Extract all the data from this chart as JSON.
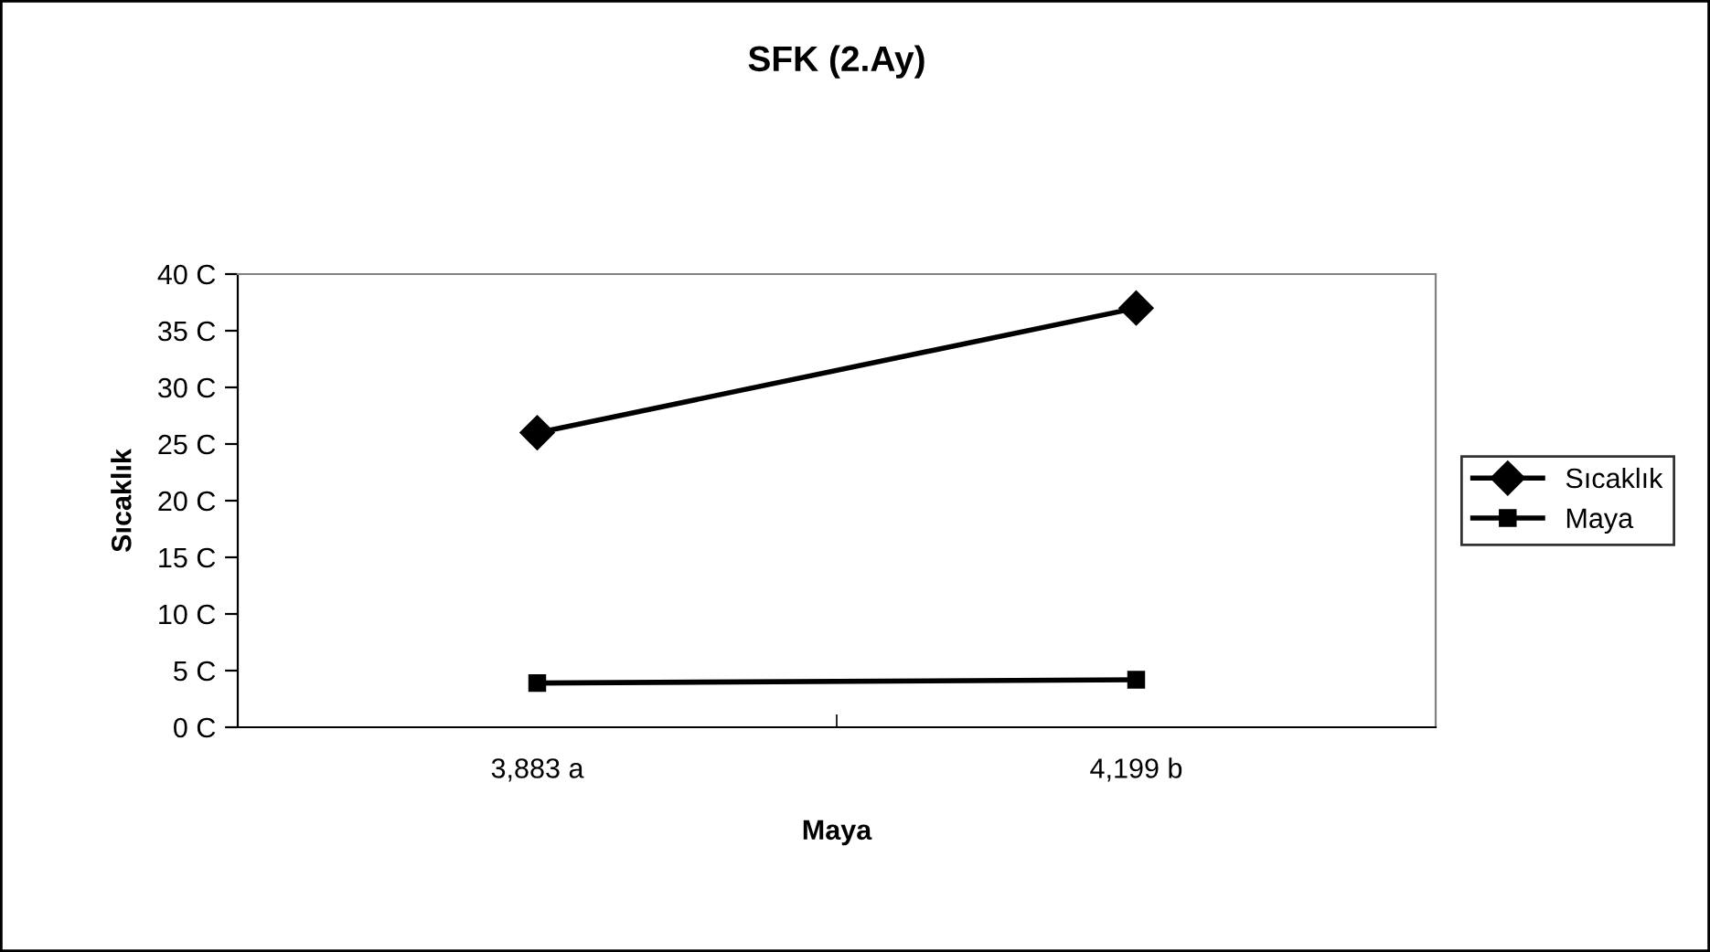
{
  "chart_data": {
    "type": "line",
    "title": "SFK (2.Ay)",
    "xlabel": "Maya",
    "ylabel": "Sıcaklık",
    "categories": [
      "3,883 a",
      "4,199 b"
    ],
    "series": [
      {
        "name": "Sıcaklık",
        "color": "#000000",
        "values": [
          26,
          37
        ],
        "marker": "diamond"
      },
      {
        "name": "Maya",
        "color": "#000000",
        "values": [
          3.9,
          4.2
        ],
        "marker": "square"
      }
    ],
    "ylim": [
      0,
      40
    ],
    "yticks": [
      {
        "value": 0,
        "label": "0 C"
      },
      {
        "value": 5,
        "label": "5 C"
      },
      {
        "value": 10,
        "label": "10 C"
      },
      {
        "value": 15,
        "label": "15 C"
      },
      {
        "value": 20,
        "label": "20 C"
      },
      {
        "value": 25,
        "label": "25 C"
      },
      {
        "value": 30,
        "label": "30 C"
      },
      {
        "value": 35,
        "label": "35 C"
      },
      {
        "value": 40,
        "label": "40 C"
      }
    ],
    "grid": false,
    "legend": "right",
    "line_style": "solid"
  }
}
